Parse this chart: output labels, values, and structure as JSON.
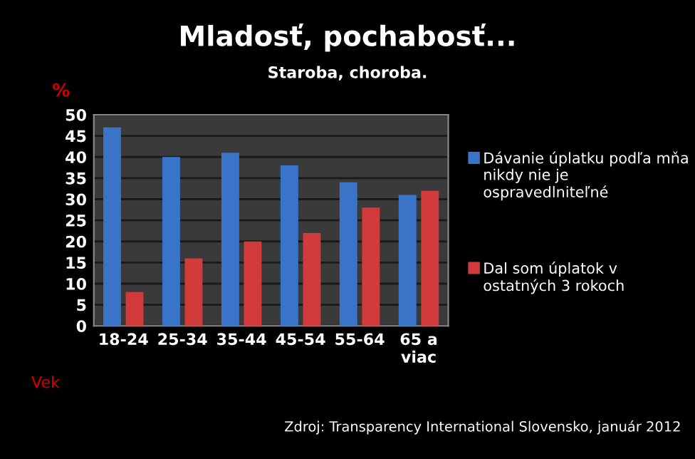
{
  "chart_data": {
    "type": "bar",
    "title": "Mladosť, pochabosť...",
    "subtitle": "Staroba, choroba.",
    "ylabel": "%",
    "xlabel": "Vek",
    "categories": [
      "18-24",
      "25-34",
      "35-44",
      "45-54",
      "55-64",
      "65 a viac"
    ],
    "series": [
      {
        "name": "Dávanie úplatku podľa mňa nikdy nie je ospravedlniteľné",
        "color": "#3a74c8",
        "values": [
          47,
          40,
          41,
          38,
          34,
          31
        ]
      },
      {
        "name": "Dal som úplatok v ostatných 3 rokoch",
        "color": "#d23b3b",
        "values": [
          8,
          16,
          20,
          22,
          28,
          32
        ]
      }
    ],
    "ylim": [
      0,
      50
    ],
    "yticks": [
      0,
      5,
      10,
      15,
      20,
      25,
      30,
      35,
      40,
      45,
      50
    ],
    "grid": "y",
    "legend": "right",
    "annotations": [
      "Zdroj: Transparency International Slovensko, január 2012"
    ]
  }
}
